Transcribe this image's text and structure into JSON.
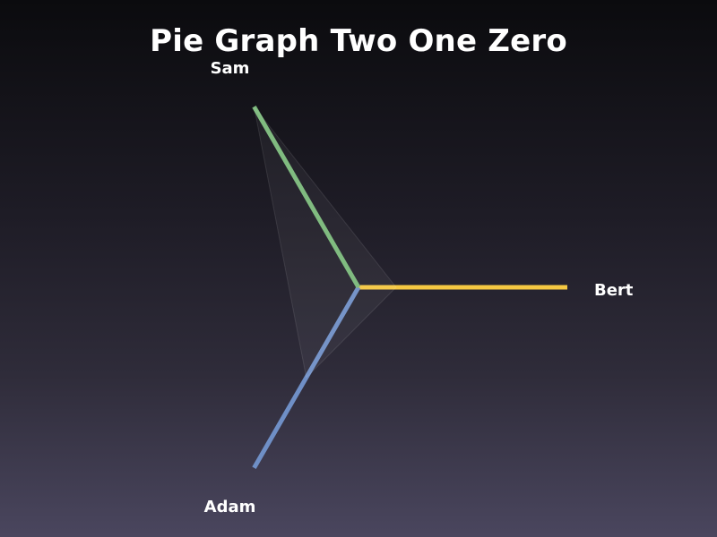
{
  "chart_data": {
    "type": "radar",
    "title": "Pie Graph Two One Zero",
    "categories": [
      "Bert",
      "Adam",
      "Sam"
    ],
    "series": [
      {
        "values": [
          0.18,
          0.5,
          1.0
        ],
        "color": "#ffffff"
      }
    ],
    "axis_colors": [
      "#f5c842",
      "#6f8fc6",
      "#7ab87a"
    ],
    "range": [
      0,
      1
    ]
  }
}
